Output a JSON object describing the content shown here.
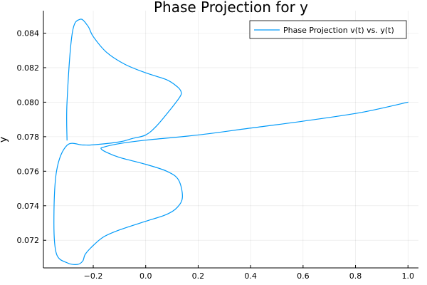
{
  "chart_data": {
    "type": "line",
    "title": "Phase Projection for y",
    "xlabel": "",
    "ylabel": "y",
    "xlim": [
      -0.39,
      1.04
    ],
    "ylim": [
      0.0704,
      0.0853
    ],
    "x_ticks": [
      -0.2,
      0.0,
      0.2,
      0.4,
      0.6,
      0.8,
      1.0
    ],
    "x_tick_labels": [
      "−0.2",
      "0.0",
      "0.2",
      "0.4",
      "0.6",
      "0.8",
      "1.0"
    ],
    "y_ticks": [
      0.072,
      0.074,
      0.076,
      0.078,
      0.08,
      0.082,
      0.084
    ],
    "y_tick_labels": [
      "0.072",
      "0.074",
      "0.076",
      "0.078",
      "0.080",
      "0.082",
      "0.084"
    ],
    "grid": true,
    "legend_position": "top-right",
    "series": [
      {
        "name": "Phase Projection v(t) vs. y(t)",
        "color": "#009af9",
        "x": [
          1.0,
          0.82,
          0.6,
          0.4,
          0.2,
          0.0,
          -0.1,
          -0.16,
          -0.17,
          -0.15,
          -0.1,
          0.0,
          0.08,
          0.125,
          0.14,
          0.12,
          0.08,
          0.0,
          -0.1,
          -0.16,
          -0.2,
          -0.23,
          -0.24,
          -0.26,
          -0.3,
          -0.34,
          -0.35,
          -0.34,
          -0.3,
          -0.24,
          -0.2,
          -0.1,
          -0.05,
          0.0,
          0.04,
          0.09,
          0.13,
          0.135,
          0.12,
          0.08,
          0.0,
          -0.08,
          -0.15,
          -0.2,
          -0.22,
          -0.25,
          -0.28,
          -0.3,
          -0.3
        ],
        "y": [
          0.08,
          0.0794,
          0.0789,
          0.0785,
          0.0781,
          0.0778,
          0.0776,
          0.0774,
          0.0773,
          0.0771,
          0.0768,
          0.0764,
          0.076,
          0.0755,
          0.0745,
          0.0739,
          0.0735,
          0.0731,
          0.0726,
          0.0722,
          0.0717,
          0.0712,
          0.0708,
          0.0706,
          0.0707,
          0.0712,
          0.073,
          0.076,
          0.0775,
          0.07752,
          0.07753,
          0.0777,
          0.0779,
          0.0781,
          0.0786,
          0.0795,
          0.0803,
          0.0806,
          0.0809,
          0.0813,
          0.0817,
          0.0822,
          0.0829,
          0.0838,
          0.0844,
          0.0848,
          0.084,
          0.08,
          0.0778
        ]
      }
    ]
  }
}
